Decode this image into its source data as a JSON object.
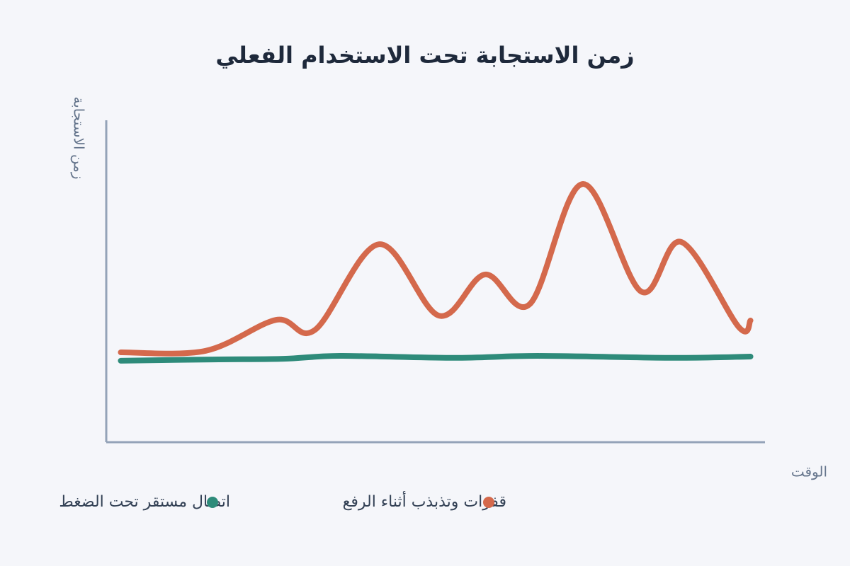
{
  "chart_data": {
    "type": "line",
    "title": "زمن الاستجابة تحت الاستخدام الفعلي",
    "y_label": "زمن الاستجابة",
    "x_label": "الوقت",
    "xlim": [
      0,
      100
    ],
    "ylim": [
      0,
      100
    ],
    "series": [
      {
        "name": "قفزات وتذبذب أثناء الرفع",
        "color": "#d4694c",
        "x": [
          2.2,
          15.1,
          25.8,
          31.7,
          41.4,
          50.5,
          57.5,
          64.3,
          72.3,
          81.2,
          87.3,
          96.0,
          97.8
        ],
        "values": [
          27.9,
          28.4,
          38.0,
          34.9,
          61.5,
          39.3,
          52.1,
          42.9,
          80.2,
          46.8,
          62.2,
          35.8,
          37.8
        ]
      },
      {
        "name": "اتصال مستقر تحت الضغط",
        "color": "#2e8b7a",
        "x": [
          2.2,
          16.1,
          26.9,
          35.5,
          52.7,
          65.6,
          86.0,
          97.8
        ],
        "values": [
          25.3,
          25.7,
          25.9,
          26.8,
          26.2,
          26.8,
          26.2,
          26.6
        ]
      }
    ]
  }
}
